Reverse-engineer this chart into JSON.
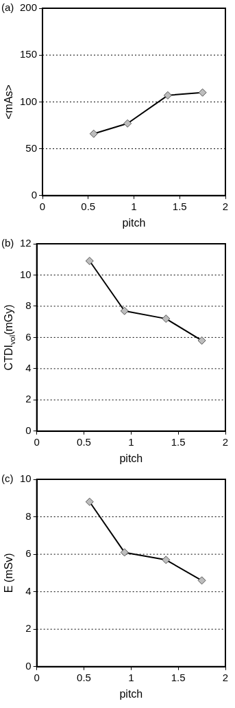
{
  "chart_data": [
    {
      "type": "line",
      "title": "(a)",
      "xlabel": "pitch",
      "ylabel": "<mAs>",
      "x": [
        0.56,
        0.93,
        1.37,
        1.75
      ],
      "series": [
        {
          "color": "#000000",
          "values": [
            66,
            77,
            107,
            110
          ]
        }
      ],
      "xlim": [
        0,
        2
      ],
      "xticks": [
        0,
        0.5,
        1,
        1.5,
        2
      ],
      "ylim": [
        0,
        200
      ],
      "yticks": [
        0,
        50,
        100,
        150,
        200
      ],
      "grid": "y",
      "marker": "diamond",
      "line_style": "solid",
      "legend": false
    },
    {
      "type": "line",
      "title": "(b)",
      "xlabel": "pitch",
      "ylabel": "CTDI$_{vol}$(mGy)",
      "x": [
        0.56,
        0.93,
        1.37,
        1.75
      ],
      "series": [
        {
          "color": "#000000",
          "values": [
            10.9,
            7.7,
            7.2,
            5.8
          ]
        }
      ],
      "xlim": [
        0,
        2
      ],
      "xticks": [
        0,
        0.5,
        1,
        1.5,
        2
      ],
      "ylim": [
        0,
        12
      ],
      "yticks": [
        0,
        2,
        4,
        6,
        8,
        10,
        12
      ],
      "grid": "y",
      "marker": "diamond",
      "line_style": "solid",
      "legend": false
    },
    {
      "type": "line",
      "title": "(c)",
      "xlabel": "pitch",
      "ylabel": "E (mSv)",
      "x": [
        0.56,
        0.93,
        1.37,
        1.75
      ],
      "series": [
        {
          "color": "#000000",
          "values": [
            8.8,
            6.1,
            5.7,
            4.6
          ]
        }
      ],
      "xlim": [
        0,
        2
      ],
      "xticks": [
        0,
        0.5,
        1,
        1.5,
        2
      ],
      "ylim": [
        0,
        10
      ],
      "yticks": [
        0,
        2,
        4,
        6,
        8,
        10
      ],
      "grid": "y",
      "marker": "diamond",
      "line_style": "solid",
      "legend": false
    }
  ]
}
